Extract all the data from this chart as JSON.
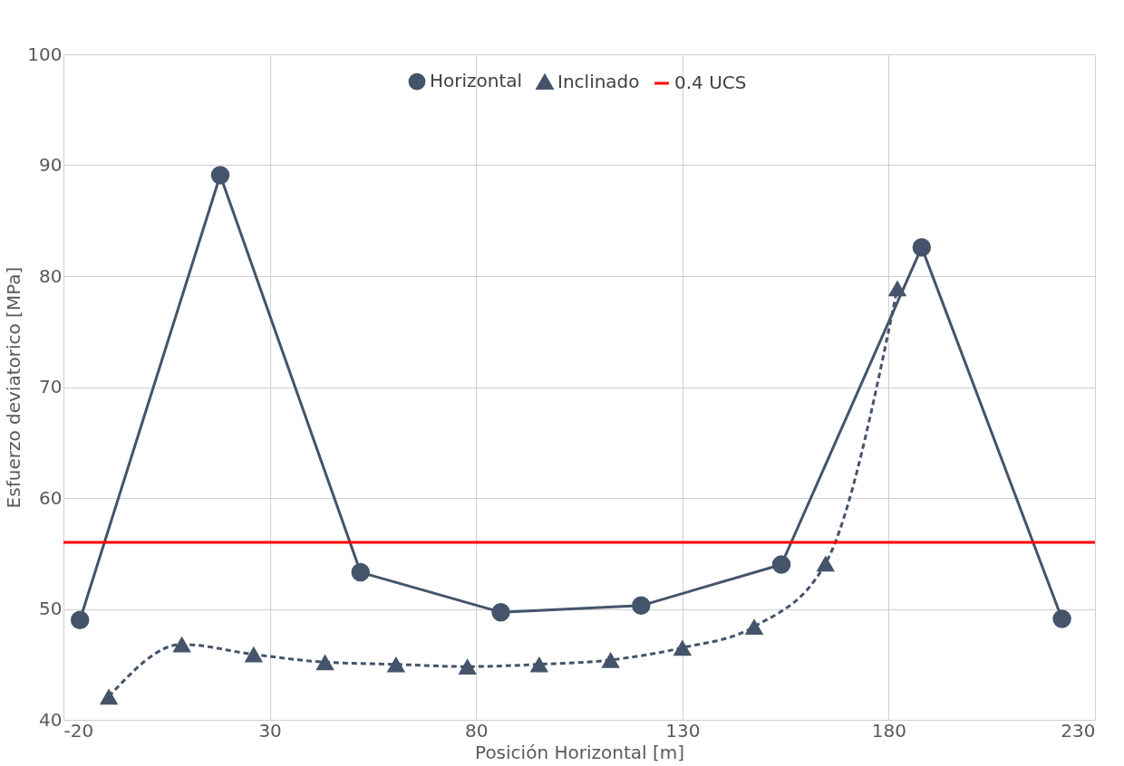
{
  "chart_data": {
    "type": "line",
    "xlabel": "Posición Horizontal [m]",
    "ylabel": "Esfuerzo deviatorico [MPa]",
    "xlim": [
      -20,
      230
    ],
    "xticks": [
      -20,
      30,
      80,
      130,
      180,
      230
    ],
    "ylim": [
      40,
      100
    ],
    "yticks": [
      40,
      50,
      60,
      70,
      80,
      90,
      100
    ],
    "grid": true,
    "legend": "top",
    "series": [
      {
        "name": "Horizontal",
        "color": "#44546a",
        "marker": "circle",
        "line_style": "solid",
        "x": [
          -16,
          18,
          52,
          86,
          120,
          154,
          188,
          222
        ],
        "values": [
          49.0,
          89.1,
          53.3,
          49.7,
          50.3,
          54.0,
          82.6,
          49.1
        ]
      },
      {
        "name": "Inclinado",
        "color": "#44546a",
        "marker": "triangle",
        "line_style": "dashed",
        "x": [
          -9,
          8.7,
          26.1,
          43.4,
          60.6,
          77.9,
          95.3,
          112.6,
          130,
          147.4,
          164.7,
          182.1
        ],
        "values": [
          42.1,
          46.8,
          45.9,
          45.2,
          45.0,
          44.8,
          45.0,
          45.4,
          46.5,
          48.4,
          54.1,
          78.9
        ]
      }
    ],
    "ref_lines": [
      {
        "axis": "y",
        "value": 56.0,
        "label": "0.4 UCS",
        "color": "#ff0000",
        "line_style": "solid"
      }
    ]
  }
}
